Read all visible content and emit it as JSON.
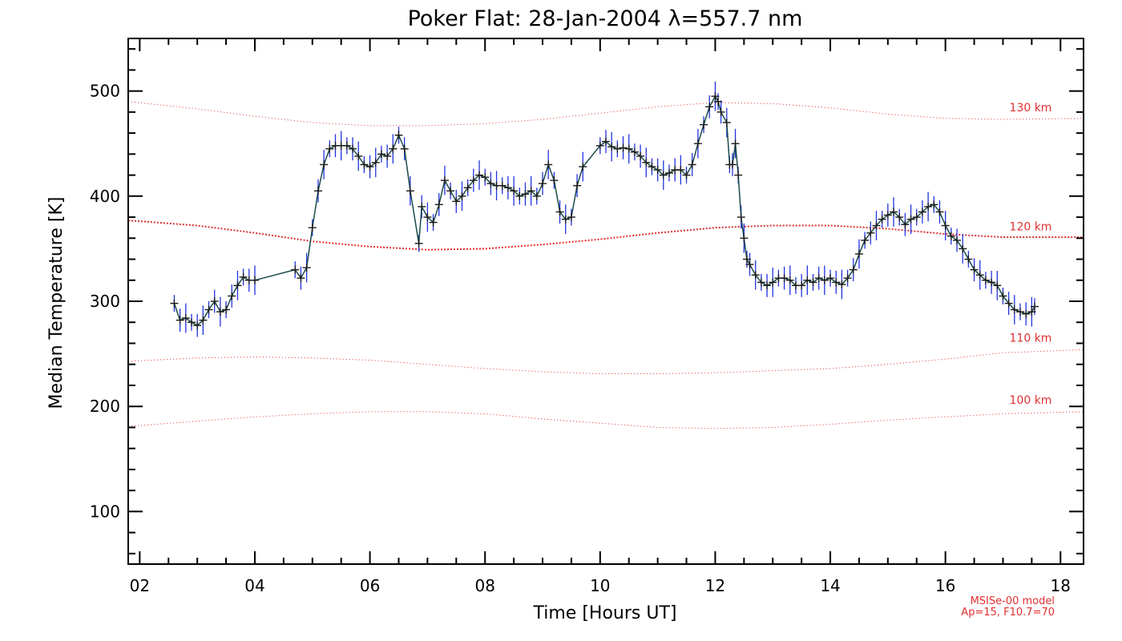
{
  "chart_data": {
    "type": "line",
    "title": "Poker Flat: 28-Jan-2004 λ=557.7 nm",
    "xlabel": "Time [Hours UT]",
    "ylabel": "Median Temperature [K]",
    "xlim": [
      1.8,
      18.4
    ],
    "ylim": [
      50,
      550
    ],
    "x_ticks": [
      2,
      4,
      6,
      8,
      10,
      12,
      14,
      16,
      18
    ],
    "x_tick_labels": [
      "02",
      "04",
      "06",
      "08",
      "10",
      "12",
      "14",
      "16",
      "18"
    ],
    "y_ticks": [
      100,
      200,
      300,
      400,
      500
    ],
    "y_tick_labels": [
      "100",
      "200",
      "300",
      "400",
      "500"
    ],
    "grid": false,
    "colors": {
      "measured": "#1a1a1a",
      "error_bars": "#2233dd",
      "model": "#e03030"
    },
    "series": [
      {
        "name": "",
        "x": [
          2.6,
          2.7,
          2.8,
          2.9,
          3.0,
          3.1,
          3.2,
          3.3,
          3.4,
          3.5,
          3.6,
          3.7,
          3.8,
          3.9,
          4.0,
          4.7,
          4.8,
          4.9,
          5.0,
          5.1,
          5.2,
          5.3,
          5.4,
          5.5,
          5.6,
          5.7,
          5.8,
          5.9,
          6.0,
          6.1,
          6.2,
          6.3,
          6.4,
          6.5,
          6.6,
          6.7,
          6.85,
          6.9,
          7.0,
          7.1,
          7.2,
          7.3,
          7.4,
          7.5,
          7.6,
          7.7,
          7.8,
          7.9,
          8.0,
          8.1,
          8.2,
          8.3,
          8.4,
          8.5,
          8.6,
          8.7,
          8.8,
          8.9,
          9.0,
          9.1,
          9.2,
          9.3,
          9.4,
          9.5,
          9.6,
          9.7,
          10.0,
          10.1,
          10.2,
          10.3,
          10.4,
          10.5,
          10.6,
          10.7,
          10.8,
          10.9,
          11.0,
          11.1,
          11.2,
          11.3,
          11.4,
          11.5,
          11.6,
          11.7,
          11.8,
          11.9,
          12.0,
          12.05,
          12.1,
          12.2,
          12.25,
          12.3,
          12.35,
          12.4,
          12.45,
          12.5,
          12.55,
          12.6,
          12.7,
          12.8,
          12.9,
          13.0,
          13.1,
          13.2,
          13.3,
          13.4,
          13.5,
          13.6,
          13.7,
          13.8,
          13.9,
          14.0,
          14.1,
          14.2,
          14.3,
          14.4,
          14.5,
          14.6,
          14.7,
          14.8,
          14.9,
          15.0,
          15.1,
          15.2,
          15.3,
          15.4,
          15.5,
          15.6,
          15.7,
          15.8,
          15.9,
          16.0,
          16.1,
          16.2,
          16.3,
          16.4,
          16.5,
          16.6,
          16.7,
          16.8,
          16.9,
          17.0,
          17.1,
          17.2,
          17.3,
          17.4,
          17.5,
          17.55
        ],
        "y": [
          298,
          282,
          284,
          280,
          277,
          282,
          292,
          300,
          290,
          292,
          305,
          315,
          323,
          320,
          320,
          330,
          322,
          332,
          370,
          405,
          430,
          445,
          448,
          448,
          448,
          445,
          438,
          430,
          428,
          432,
          440,
          438,
          445,
          458,
          445,
          405,
          355,
          390,
          380,
          375,
          392,
          415,
          405,
          395,
          400,
          408,
          415,
          420,
          418,
          412,
          410,
          410,
          408,
          405,
          400,
          402,
          405,
          400,
          412,
          430,
          415,
          385,
          378,
          380,
          410,
          428,
          448,
          452,
          447,
          445,
          446,
          445,
          442,
          438,
          432,
          428,
          425,
          420,
          422,
          425,
          425,
          420,
          430,
          450,
          468,
          485,
          495,
          490,
          480,
          470,
          430,
          430,
          450,
          420,
          380,
          360,
          340,
          335,
          325,
          318,
          315,
          318,
          322,
          322,
          320,
          315,
          315,
          320,
          318,
          322,
          320,
          322,
          318,
          316,
          322,
          330,
          345,
          358,
          365,
          372,
          378,
          382,
          385,
          380,
          373,
          378,
          380,
          385,
          390,
          392,
          385,
          372,
          362,
          358,
          350,
          340,
          330,
          325,
          320,
          318,
          315,
          305,
          298,
          292,
          290,
          288,
          290,
          295
        ]
      },
      {
        "name": "",
        "x": [
          1.8,
          3,
          4,
          5,
          6,
          7,
          8,
          9,
          10,
          11,
          12,
          13,
          14,
          15,
          16,
          17,
          18.4
        ],
        "y": [
          490,
          483,
          476,
          470,
          467,
          467,
          469,
          473,
          479,
          485,
          489,
          488,
          484,
          478,
          474,
          473,
          474
        ]
      },
      {
        "name": "",
        "x": [
          1.8,
          3,
          4,
          5,
          6,
          7,
          8,
          9,
          10,
          11,
          12,
          13,
          14,
          15,
          16,
          17,
          18.4
        ],
        "y": [
          377,
          372,
          365,
          357,
          352,
          349,
          350,
          354,
          359,
          365,
          370,
          372,
          372,
          369,
          364,
          361,
          361
        ]
      },
      {
        "name": "",
        "x": [
          1.8,
          3,
          4,
          5,
          6,
          7,
          8,
          9,
          10,
          11,
          12,
          13,
          14,
          15,
          16,
          17,
          18.4
        ],
        "y": [
          243,
          246,
          247,
          246,
          244,
          240,
          236,
          233,
          231,
          231,
          232,
          234,
          236,
          240,
          245,
          251,
          254
        ]
      },
      {
        "name": "",
        "x": [
          1.8,
          3,
          4,
          5,
          6,
          7,
          8,
          9,
          10,
          11,
          12,
          13,
          14,
          15,
          16,
          17,
          18.4
        ],
        "y": [
          181,
          186,
          190,
          193,
          195,
          195,
          193,
          188,
          184,
          180,
          179,
          180,
          183,
          187,
          190,
          193,
          195
        ]
      }
    ],
    "model_curve_labels": [
      "130 km",
      "120 km",
      "110 km",
      "100 km"
    ],
    "model_curve_label_y": [
      473,
      360,
      254,
      195
    ],
    "footnote_lines": [
      "MSISe-00 model",
      "Ap=15, F10.7=70"
    ]
  }
}
